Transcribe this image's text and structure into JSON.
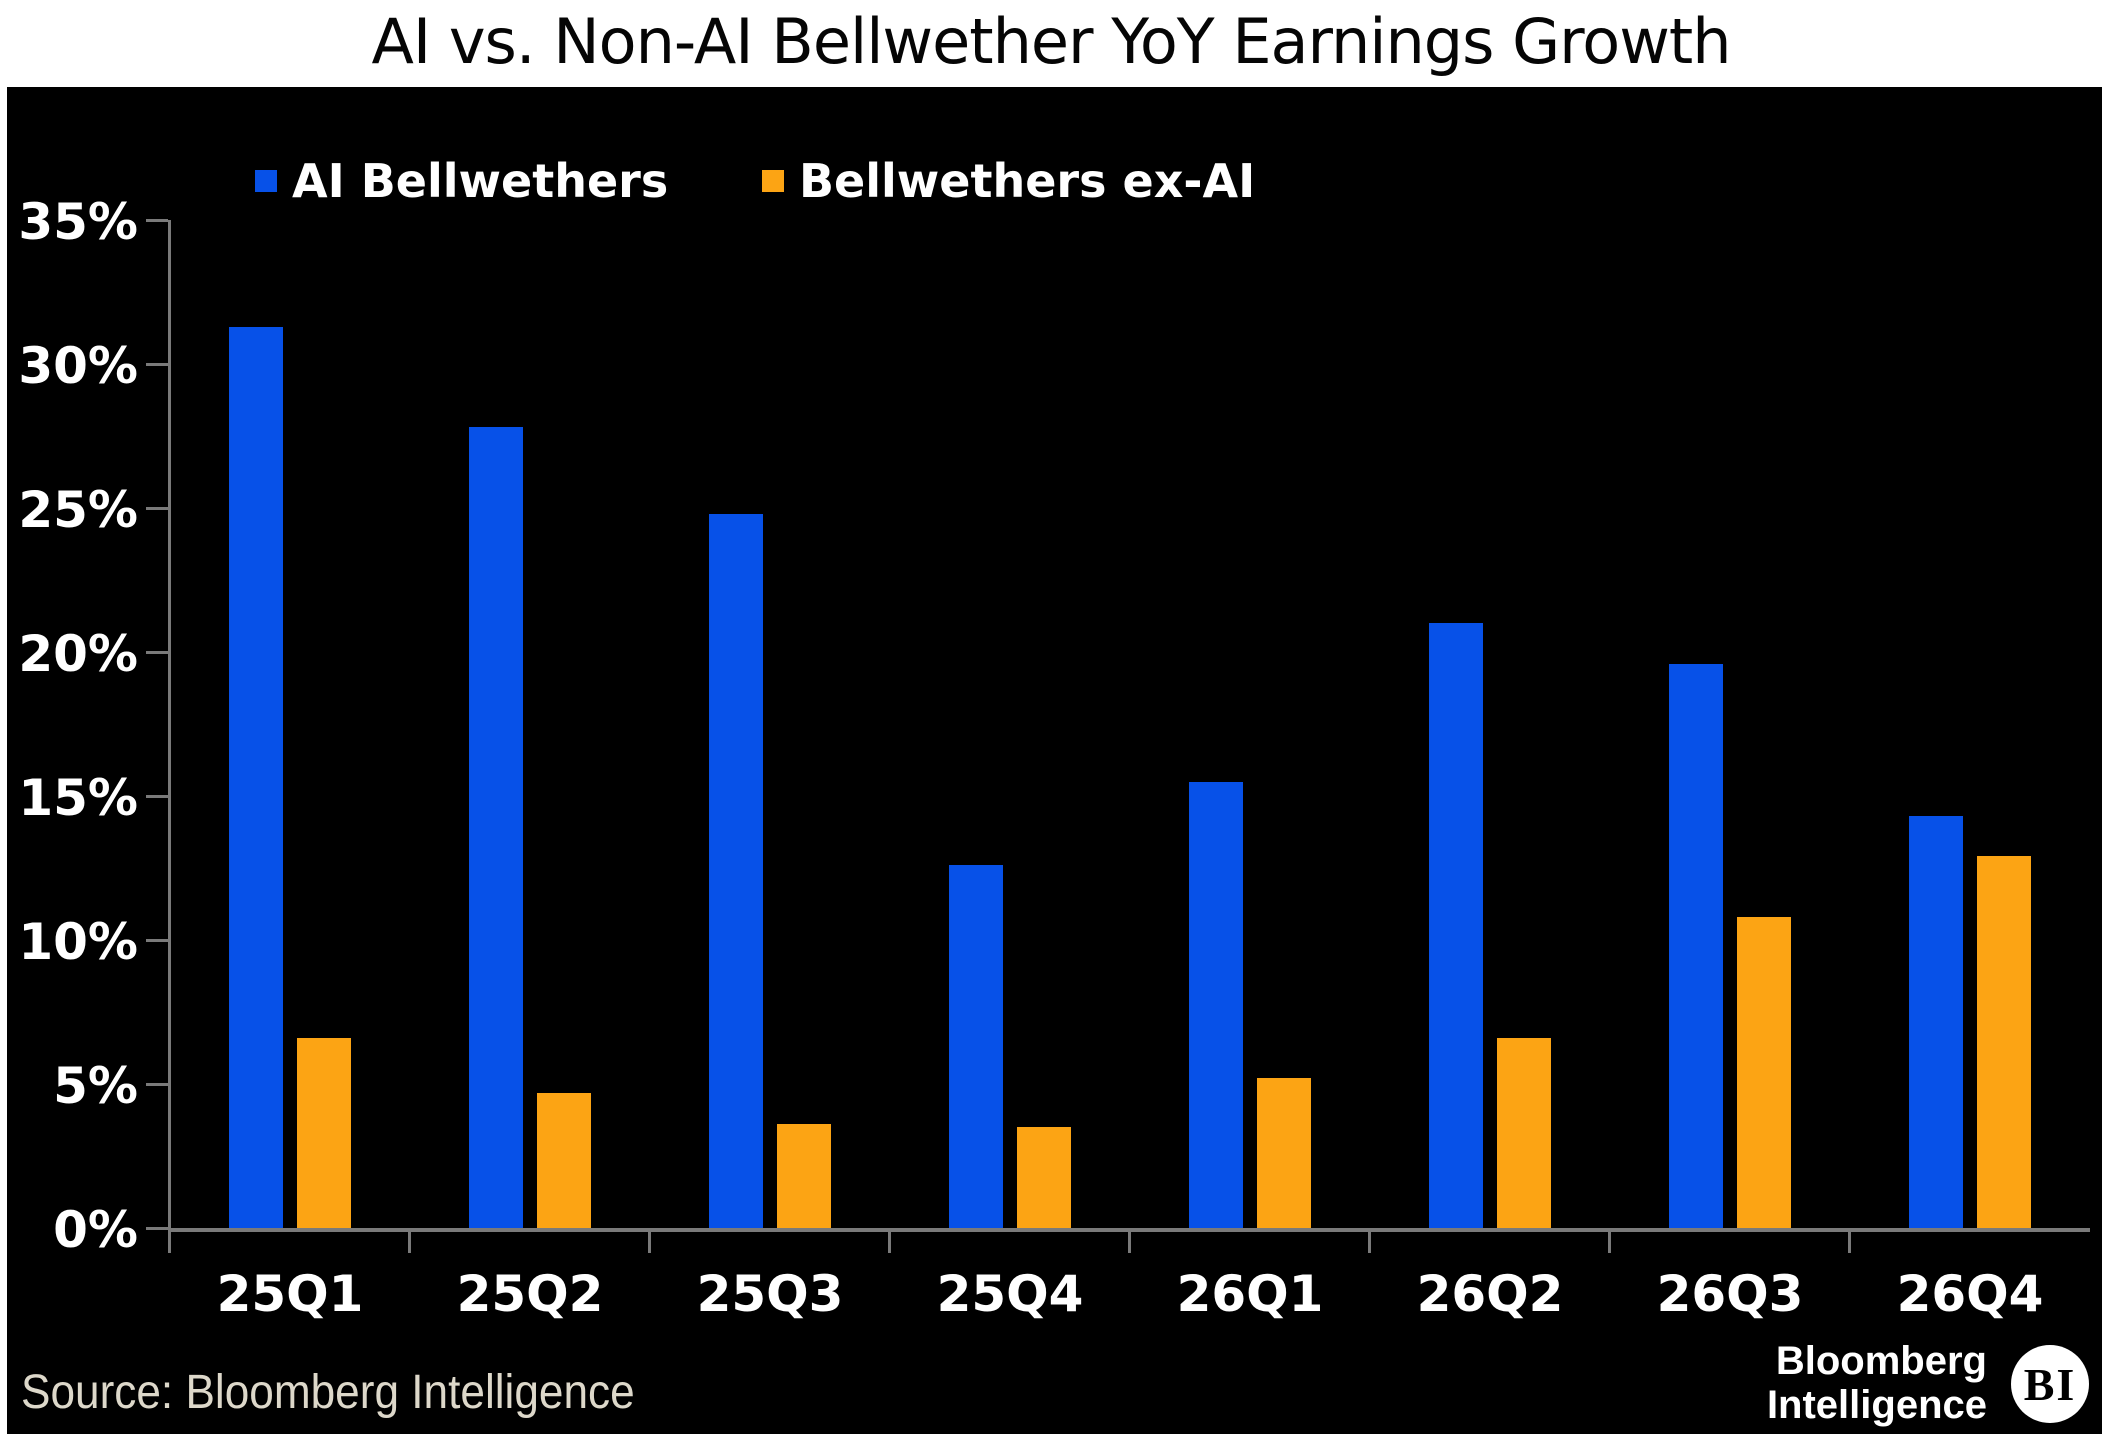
{
  "title": "AI vs. Non-AI Bellwether YoY Earnings Growth",
  "source": "Source: Bloomberg Intelligence",
  "logo": {
    "line1": "Bloomberg",
    "line2": "Intelligence",
    "badge": "BI"
  },
  "colors": {
    "ai_blue": "#0751e8",
    "ex_ai_orange": "#fca414",
    "axis_gray": "#7a7a7a",
    "panel_bg": "#000000",
    "axis_text": "#ffffff",
    "source_text": "#ddd8ca"
  },
  "chart_data": {
    "type": "bar",
    "categories": [
      "25Q1",
      "25Q2",
      "25Q3",
      "25Q4",
      "26Q1",
      "26Q2",
      "26Q3",
      "26Q4"
    ],
    "series": [
      {
        "name": "AI Bellwethers",
        "color": "#0751e8",
        "values": [
          31.3,
          27.8,
          24.8,
          12.6,
          15.5,
          21.0,
          19.6,
          14.3
        ]
      },
      {
        "name": "Bellwethers ex-AI",
        "color": "#fca414",
        "values": [
          6.6,
          4.7,
          3.6,
          3.5,
          5.2,
          6.6,
          10.8,
          12.9
        ]
      }
    ],
    "ylim": [
      0,
      35
    ],
    "ytick_step": 5,
    "ytick_labels": [
      "0%",
      "5%",
      "10%",
      "15%",
      "20%",
      "25%",
      "30%",
      "35%"
    ],
    "grid": false,
    "legend_position": "top-left",
    "unit": "percent",
    "xlabel": "",
    "ylabel": ""
  }
}
